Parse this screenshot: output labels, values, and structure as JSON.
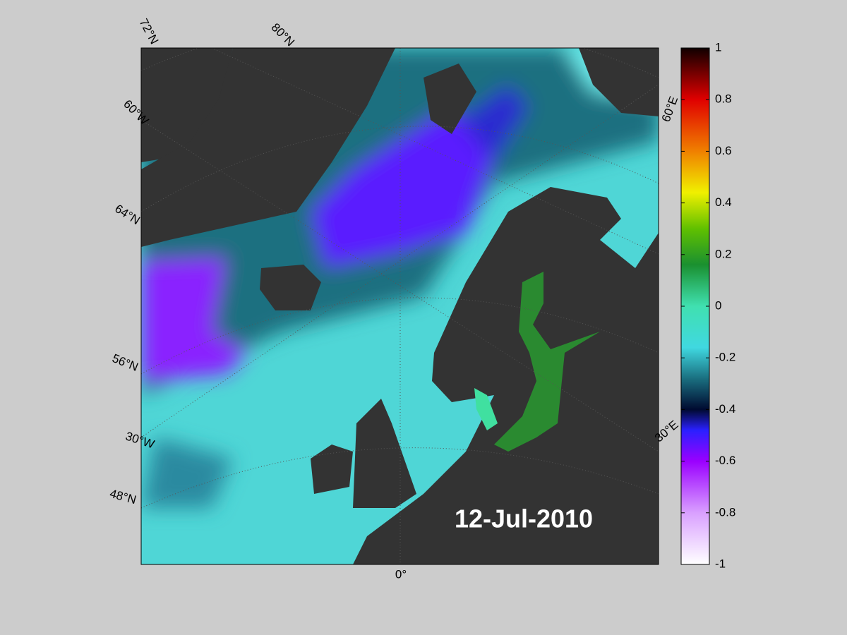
{
  "map": {
    "labels": [
      "72°N",
      "80°N",
      "60°W",
      "64°N",
      "56°N",
      "30°W",
      "48°N",
      "0°",
      "60°E",
      "30°E"
    ],
    "date": "12-Jul-2010"
  },
  "colorbar": {
    "lim": [
      -1,
      1
    ],
    "ticks": [
      1,
      0.8,
      0.6,
      0.4,
      0.2,
      0,
      -0.2,
      -0.4,
      -0.6,
      -0.8,
      -1
    ]
  }
}
